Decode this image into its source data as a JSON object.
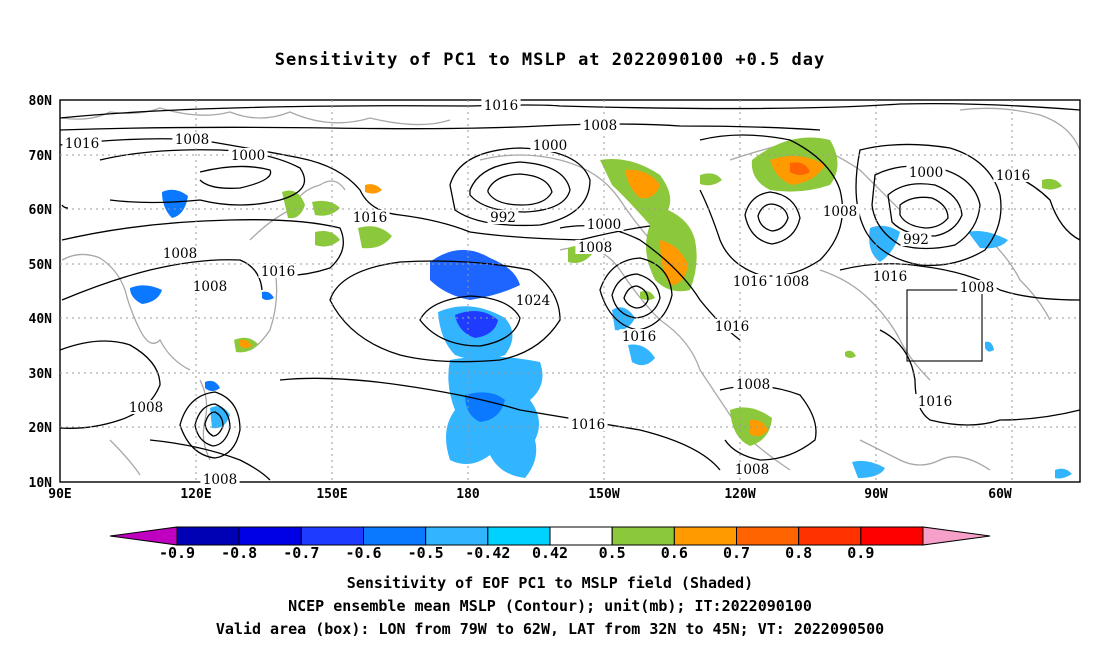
{
  "title": "Sensitivity of PC1 to MSLP at 2022090100 +0.5 day",
  "map": {
    "lat_labels": [
      "80N",
      "70N",
      "60N",
      "50N",
      "40N",
      "30N",
      "20N",
      "10N"
    ],
    "lon_labels": [
      "90E",
      "120E",
      "150E",
      "180",
      "150W",
      "120W",
      "90W",
      "60W"
    ],
    "contour_labels": [
      {
        "text": "1016"
      },
      {
        "text": "1016"
      },
      {
        "text": "1008"
      },
      {
        "text": "1008"
      },
      {
        "text": "1000"
      },
      {
        "text": "1000"
      },
      {
        "text": "992"
      },
      {
        "text": "1000"
      },
      {
        "text": "1008"
      },
      {
        "text": "1016"
      },
      {
        "text": "1008"
      },
      {
        "text": "1008"
      },
      {
        "text": "1016"
      },
      {
        "text": "1024"
      },
      {
        "text": "1016"
      },
      {
        "text": "1016"
      },
      {
        "text": "1016"
      },
      {
        "text": "1008"
      },
      {
        "text": "1008"
      },
      {
        "text": "1000"
      },
      {
        "text": "992"
      },
      {
        "text": "1016"
      },
      {
        "text": "1016"
      },
      {
        "text": "1008"
      },
      {
        "text": "1016"
      },
      {
        "text": "1008"
      },
      {
        "text": "1008"
      },
      {
        "text": "1008"
      },
      {
        "text": "1016"
      },
      {
        "text": "1008"
      }
    ],
    "valid_box": {
      "lon_from": "79W",
      "lon_to": "62W",
      "lat_from": "32N",
      "lat_to": "45N"
    }
  },
  "colorbar": {
    "ticks": [
      "-0.9",
      "-0.8",
      "-0.7",
      "-0.6",
      "-0.5",
      "-0.42",
      "0.42",
      "0.5",
      "0.6",
      "0.7",
      "0.8",
      "0.9"
    ],
    "colors": [
      "#c000c0",
      "#0000b4",
      "#0000e6",
      "#1e3cff",
      "#0a78ff",
      "#32b4ff",
      "#00d2ff",
      "#ffffff",
      "#8cc83c",
      "#ff9a00",
      "#ff6400",
      "#ff3200",
      "#ff0000",
      "#f5a0c8"
    ]
  },
  "captions": {
    "line1": "Sensitivity of EOF PC1 to MSLP field (Shaded)",
    "line2": "NCEP ensemble mean MSLP (Contour); unit(mb); IT:2022090100",
    "line3": "Valid area (box): LON from 79W to 62W, LAT from 32N to 45N; VT: 2022090500"
  }
}
